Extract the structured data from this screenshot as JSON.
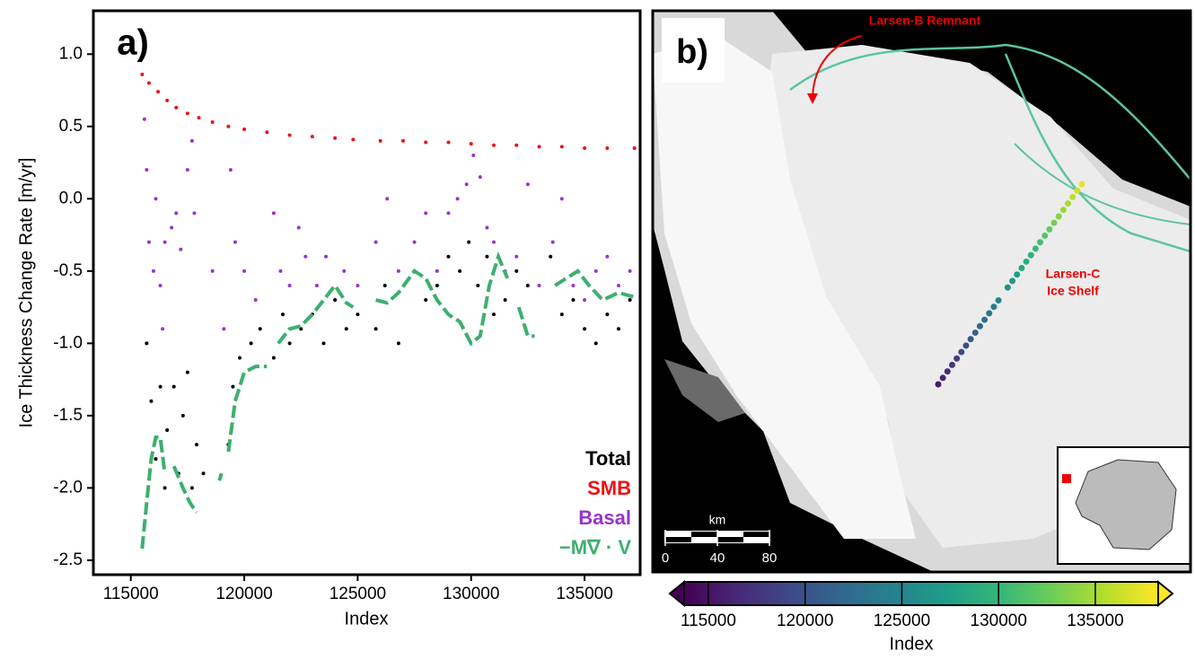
{
  "chart_data": [
    {
      "type": "scatter",
      "label": "a)",
      "xlabel": "Index",
      "ylabel": "Ice Thickness Change Rate [m/yr]",
      "xlim": [
        113350,
        137450
      ],
      "ylim": [
        -2.6,
        1.3
      ],
      "xticks": [
        115000,
        120000,
        125000,
        130000,
        135000
      ],
      "yticks": [
        {
          "value": 1,
          "label": "1.0"
        },
        0.5,
        {
          "value": 0,
          "label": "0.0"
        },
        -0.5,
        {
          "value": -1,
          "label": "-1.0"
        },
        -1.5,
        {
          "value": -2,
          "label": "-2.0"
        },
        -2.5
      ],
      "legend": "lower right",
      "series": [
        {
          "name": "Total",
          "color": "#000000",
          "mark": "dots",
          "x": [
            115700,
            115900,
            116100,
            116300,
            116500,
            116600,
            116900,
            117100,
            117300,
            117500,
            117700,
            117900,
            118200,
            119300,
            119500,
            119800,
            120300,
            120700,
            121300,
            121700,
            122000,
            122500,
            123000,
            123500,
            124000,
            124500,
            125000,
            125800,
            126200,
            126800,
            127500,
            128000,
            128500,
            129000,
            129500,
            129900,
            130300,
            130700,
            131000,
            131500,
            132000,
            132500,
            133500,
            134000,
            134500,
            135000,
            135500,
            136000,
            136500,
            137000
          ],
          "values": [
            -1.0,
            -1.4,
            -1.8,
            -1.3,
            -2.0,
            -1.6,
            -1.3,
            -1.9,
            -1.5,
            -1.2,
            -2.0,
            -1.7,
            -1.9,
            -1.7,
            -1.3,
            -1.1,
            -1.0,
            -0.9,
            -1.1,
            -0.8,
            -1.0,
            -0.9,
            -0.8,
            -1.0,
            -0.7,
            -0.9,
            -0.8,
            -0.9,
            -0.6,
            -1.0,
            -0.5,
            -0.7,
            -0.6,
            -0.4,
            -0.5,
            -0.3,
            -0.6,
            -0.4,
            -0.8,
            -0.7,
            -0.5,
            -0.6,
            -0.4,
            -0.8,
            -0.7,
            -0.9,
            -1.0,
            -0.8,
            -0.9,
            -0.7
          ]
        },
        {
          "name": "SMB",
          "color": "#ee1111",
          "mark": "dots",
          "x": [
            115500,
            115800,
            116200,
            116600,
            117000,
            117500,
            118000,
            118600,
            119300,
            120000,
            121000,
            122000,
            123000,
            124000,
            124800,
            126000,
            127000,
            128000,
            129000,
            130000,
            131000,
            132000,
            133000,
            134000,
            135000,
            136000,
            137200
          ],
          "values": [
            0.86,
            0.8,
            0.74,
            0.68,
            0.63,
            0.59,
            0.56,
            0.53,
            0.5,
            0.48,
            0.46,
            0.44,
            0.43,
            0.42,
            0.41,
            0.4,
            0.4,
            0.39,
            0.39,
            0.38,
            0.37,
            0.37,
            0.36,
            0.36,
            0.35,
            0.35,
            0.35
          ]
        },
        {
          "name": "Basal",
          "color": "#9933cc",
          "mark": "dots",
          "x": [
            115600,
            115700,
            115800,
            116000,
            116100,
            116300,
            116400,
            116500,
            116800,
            117000,
            117200,
            117500,
            117700,
            117800,
            118600,
            119100,
            119400,
            119600,
            120000,
            120500,
            121300,
            121600,
            122000,
            122400,
            122700,
            123200,
            123600,
            124000,
            124400,
            125000,
            125800,
            126300,
            126800,
            127500,
            128000,
            128500,
            129000,
            129400,
            129800,
            130100,
            130400,
            130700,
            131000,
            131500,
            132000,
            132500,
            133000,
            133600,
            134000,
            134500,
            135000,
            135500,
            136000,
            136500,
            137000
          ],
          "values": [
            0.55,
            0.2,
            -0.3,
            -0.5,
            0.0,
            -0.6,
            -0.9,
            -0.3,
            -0.2,
            -0.1,
            -0.35,
            0.2,
            0.4,
            -0.1,
            -0.5,
            -0.9,
            0.2,
            -0.3,
            -0.5,
            -0.7,
            -0.1,
            -0.5,
            -0.6,
            -0.2,
            -0.4,
            -0.6,
            -0.4,
            -0.7,
            -0.5,
            -0.6,
            -0.3,
            0.0,
            -0.5,
            -0.3,
            -0.1,
            -0.5,
            -0.1,
            0.0,
            0.1,
            0.3,
            0.15,
            -0.2,
            -0.3,
            -0.5,
            -0.4,
            0.1,
            -0.6,
            -0.3,
            0.0,
            -0.6,
            -0.7,
            -0.5,
            -0.4,
            -0.6,
            -0.5
          ]
        },
        {
          "name": "−M∇ · V",
          "color": "#3daf6f",
          "mark": "dashed line",
          "x": [
            115500,
            115700,
            115900,
            116100,
            116300,
            116500,
            116700,
            116900,
            117300,
            117600,
            117900,
            118400,
            118900,
            119000,
            119150,
            119300,
            119600,
            119800,
            120000,
            120500,
            121000,
            121250,
            121500,
            122000,
            122500,
            123000,
            123500,
            124000,
            124500,
            124800,
            125300,
            125800,
            126300,
            126800,
            127500,
            128000,
            128500,
            129000,
            129500,
            130000,
            130400,
            130800,
            131200,
            131600,
            131850,
            132100,
            132500,
            132800,
            133250,
            133700,
            134200,
            134700,
            135200,
            135800,
            136500,
            137200
          ],
          "values": [
            -2.42,
            -2.1,
            -1.8,
            -1.65,
            -1.65,
            -1.9,
            null,
            -1.85,
            -2.0,
            -2.1,
            -2.17,
            null,
            -1.95,
            -1.9,
            null,
            -1.75,
            -1.4,
            -1.3,
            -1.2,
            -1.16,
            -1.16,
            null,
            -1.0,
            -0.9,
            -0.88,
            -0.8,
            -0.7,
            -0.6,
            -0.72,
            -0.75,
            null,
            -0.7,
            -0.72,
            -0.65,
            -0.5,
            -0.55,
            -0.7,
            -0.8,
            -0.85,
            -1.0,
            -0.95,
            -0.6,
            -0.4,
            -0.55,
            null,
            -0.75,
            -0.95,
            -0.95,
            null,
            -0.6,
            -0.55,
            -0.5,
            -0.6,
            -0.7,
            -0.65,
            -0.68
          ]
        }
      ]
    },
    {
      "type": "map",
      "label": "b)",
      "annotations": [
        "Larsen-B Remnant",
        "Larsen-C",
        "Ice Shelf"
      ],
      "scale_bar": {
        "label": "km",
        "ticks": [
          0,
          40,
          80
        ]
      },
      "colorbar": {
        "label": "Index",
        "clim": [
          113750,
          138250
        ],
        "ticks": [
          115000,
          120000,
          125000,
          130000,
          135000
        ],
        "colormap": "viridis"
      },
      "track": {
        "index": [
          115500,
          116200,
          116900,
          117600,
          118300,
          119000,
          119700,
          120400,
          121100,
          121800,
          122500,
          123200,
          123900,
          124600,
          126000,
          126700,
          127400,
          128100,
          128800,
          129500,
          130200,
          130900,
          131600,
          132300,
          133000,
          133700,
          134400,
          135100,
          135800,
          136500,
          137200
        ]
      }
    }
  ]
}
